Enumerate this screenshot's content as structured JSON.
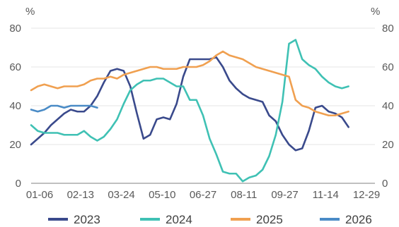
{
  "chart_data": {
    "type": "line",
    "x_ticks": [
      "01-06",
      "02-13",
      "03-24",
      "05-10",
      "06-27",
      "08-11",
      "09-27",
      "11-14",
      "12-29"
    ],
    "y_ticks": [
      0,
      20,
      40,
      60,
      80
    ],
    "y_unit_left": "%",
    "y_unit_right": "%",
    "ylim": [
      0,
      80
    ],
    "xlim": [
      0,
      52
    ],
    "grid": "horizontal",
    "legend_position": "bottom",
    "series": [
      {
        "name": "2023",
        "color": "#3A4A8C",
        "points": [
          [
            0,
            20
          ],
          [
            1,
            23
          ],
          [
            2,
            26
          ],
          [
            3,
            30
          ],
          [
            4,
            33
          ],
          [
            5,
            36
          ],
          [
            6,
            38
          ],
          [
            7,
            37
          ],
          [
            8,
            37
          ],
          [
            9,
            40
          ],
          [
            10,
            45
          ],
          [
            11,
            52
          ],
          [
            12,
            58
          ],
          [
            13,
            59
          ],
          [
            14,
            58
          ],
          [
            15,
            50
          ],
          [
            16,
            36
          ],
          [
            17,
            23
          ],
          [
            18,
            25
          ],
          [
            19,
            33
          ],
          [
            20,
            34
          ],
          [
            21,
            33
          ],
          [
            22,
            41
          ],
          [
            23,
            55
          ],
          [
            24,
            64
          ],
          [
            25,
            64
          ],
          [
            26,
            64
          ],
          [
            27,
            64
          ],
          [
            28,
            65
          ],
          [
            29,
            60
          ],
          [
            30,
            53
          ],
          [
            31,
            49
          ],
          [
            32,
            46
          ],
          [
            33,
            44
          ],
          [
            34,
            43
          ],
          [
            35,
            42
          ],
          [
            36,
            35
          ],
          [
            37,
            32
          ],
          [
            38,
            25
          ],
          [
            39,
            20
          ],
          [
            40,
            17
          ],
          [
            41,
            18
          ],
          [
            42,
            27
          ],
          [
            43,
            39
          ],
          [
            44,
            40
          ],
          [
            45,
            37
          ],
          [
            46,
            36
          ],
          [
            47,
            34
          ],
          [
            48,
            29
          ]
        ]
      },
      {
        "name": "2024",
        "color": "#3FC1B4",
        "points": [
          [
            0,
            30
          ],
          [
            1,
            27
          ],
          [
            2,
            26
          ],
          [
            3,
            26
          ],
          [
            4,
            26
          ],
          [
            5,
            25
          ],
          [
            6,
            25
          ],
          [
            7,
            25
          ],
          [
            8,
            27
          ],
          [
            9,
            24
          ],
          [
            10,
            22
          ],
          [
            11,
            24
          ],
          [
            12,
            28
          ],
          [
            13,
            33
          ],
          [
            14,
            41
          ],
          [
            15,
            48
          ],
          [
            16,
            51
          ],
          [
            17,
            53
          ],
          [
            18,
            53
          ],
          [
            19,
            54
          ],
          [
            20,
            54
          ],
          [
            21,
            52
          ],
          [
            22,
            50
          ],
          [
            23,
            50
          ],
          [
            24,
            43
          ],
          [
            25,
            43
          ],
          [
            26,
            35
          ],
          [
            27,
            23
          ],
          [
            28,
            15
          ],
          [
            29,
            6
          ],
          [
            30,
            5
          ],
          [
            31,
            5
          ],
          [
            32,
            1
          ],
          [
            33,
            3
          ],
          [
            34,
            4
          ],
          [
            35,
            7
          ],
          [
            36,
            14
          ],
          [
            37,
            25
          ],
          [
            38,
            42
          ],
          [
            39,
            72
          ],
          [
            40,
            74
          ],
          [
            41,
            64
          ],
          [
            42,
            61
          ],
          [
            43,
            59
          ],
          [
            44,
            55
          ],
          [
            45,
            52
          ],
          [
            46,
            50
          ],
          [
            47,
            49
          ],
          [
            48,
            50
          ]
        ]
      },
      {
        "name": "2025",
        "color": "#F0A050",
        "points": [
          [
            0,
            48
          ],
          [
            1,
            50
          ],
          [
            2,
            51
          ],
          [
            3,
            50
          ],
          [
            4,
            49
          ],
          [
            5,
            50
          ],
          [
            6,
            50
          ],
          [
            7,
            50
          ],
          [
            8,
            51
          ],
          [
            9,
            53
          ],
          [
            10,
            54
          ],
          [
            11,
            54
          ],
          [
            12,
            55
          ],
          [
            13,
            54
          ],
          [
            14,
            56
          ],
          [
            15,
            57
          ],
          [
            16,
            58
          ],
          [
            17,
            59
          ],
          [
            18,
            60
          ],
          [
            19,
            60
          ],
          [
            20,
            59
          ],
          [
            21,
            59
          ],
          [
            22,
            59
          ],
          [
            23,
            60
          ],
          [
            24,
            60
          ],
          [
            25,
            60
          ],
          [
            26,
            61
          ],
          [
            27,
            63
          ],
          [
            28,
            66
          ],
          [
            29,
            68
          ],
          [
            30,
            66
          ],
          [
            31,
            65
          ],
          [
            32,
            64
          ],
          [
            33,
            62
          ],
          [
            34,
            60
          ],
          [
            35,
            59
          ],
          [
            36,
            58
          ],
          [
            37,
            57
          ],
          [
            38,
            56
          ],
          [
            39,
            55
          ],
          [
            40,
            43
          ],
          [
            41,
            40
          ],
          [
            42,
            39
          ],
          [
            43,
            37
          ],
          [
            44,
            36
          ],
          [
            45,
            35
          ],
          [
            46,
            35
          ],
          [
            47,
            36
          ],
          [
            48,
            37
          ]
        ]
      },
      {
        "name": "2026",
        "color": "#4A8BC6",
        "points": [
          [
            0,
            38
          ],
          [
            1,
            37
          ],
          [
            2,
            38
          ],
          [
            3,
            40
          ],
          [
            4,
            40
          ],
          [
            5,
            39
          ],
          [
            6,
            40
          ],
          [
            7,
            40
          ],
          [
            8,
            40
          ],
          [
            9,
            40
          ],
          [
            10,
            39
          ]
        ]
      }
    ]
  }
}
